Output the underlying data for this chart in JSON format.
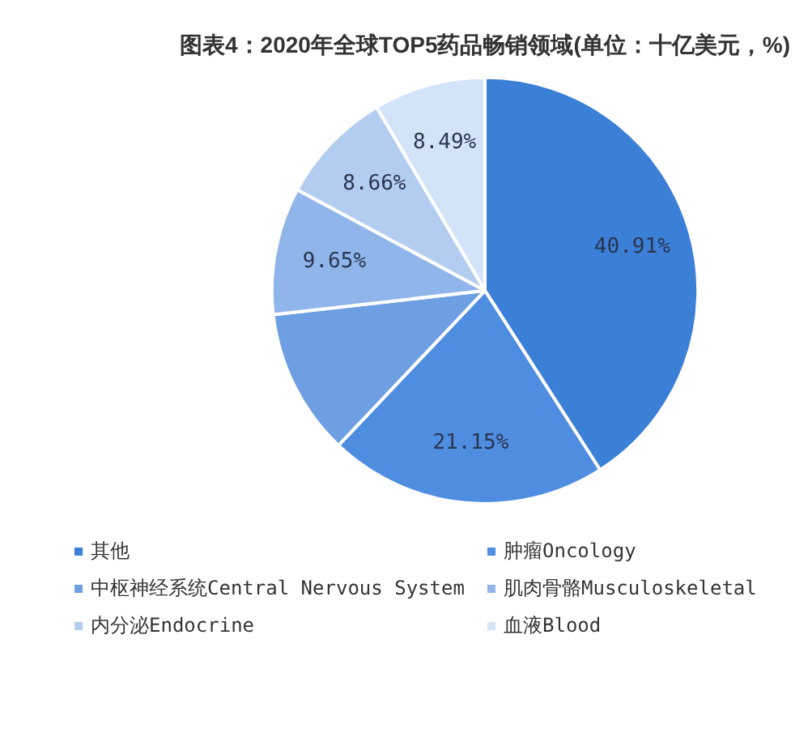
{
  "chart_data": {
    "type": "pie",
    "title": "图表4：2020年全球TOP5药品畅销领域(单位：十亿美元，%)",
    "categories": [
      "其他",
      "肿瘤Oncology",
      "中枢神经系统Central Nervous System",
      "肌肉骨骼Musculoskeletal",
      "内分泌Endocrine",
      "血液Blood"
    ],
    "values": [
      40.91,
      21.15,
      11.14,
      9.65,
      8.66,
      8.49
    ],
    "value_labels": [
      "40.91%",
      "21.15%",
      null,
      "9.65%",
      "8.66%",
      "8.49%"
    ],
    "colors": [
      "#3b7fd6",
      "#4f8de0",
      "#6e9fe2",
      "#8fb5ea",
      "#b3cdf1",
      "#d4e4f8"
    ],
    "legend": "bottom"
  }
}
